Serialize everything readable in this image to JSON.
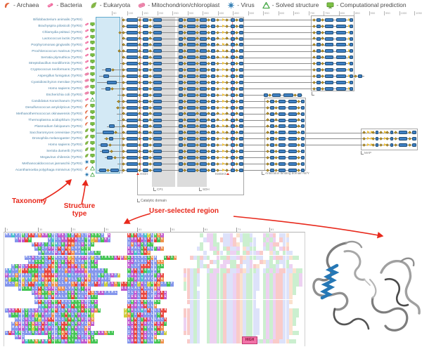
{
  "legend": {
    "items": [
      {
        "icon": "archaea-icon",
        "label": "- Archaea"
      },
      {
        "icon": "bacteria-icon",
        "label": "- Bacteria"
      },
      {
        "icon": "eukaryota-icon",
        "label": "- Eukaryota"
      },
      {
        "icon": "mitochondrion-icon",
        "label": "- Mitochondrion/chloroplast"
      },
      {
        "icon": "virus-icon",
        "label": "- Virus"
      },
      {
        "icon": "solved-structure-icon",
        "label": "- Solved structure"
      },
      {
        "icon": "computational-prediction-icon",
        "label": "- Computational prediction"
      }
    ]
  },
  "panel": {
    "ruler": {
      "start": 50,
      "end": 1050,
      "step": 50
    },
    "domain_labels": {
      "high": "HIGH",
      "kmsks": "KMSKS",
      "cp1": "CP1",
      "sdh": "SDH",
      "catalytic": "Catalytic domain",
      "anticodon": "Anticodon binding domain W/Y",
      "map": "MAP"
    },
    "glyph_patterns": {
      "cat": "d176 b180-196 d199 b203-211 d214 b218-230 b254-260 d263 b266-278 d281 b284-294 d297 b300-306 d310 a316 d323 b328-334 d337 b340-346",
      "ant1": "d447 b450-456 d459 b462-474 b478-492 a495 b497-502",
      "ant0": "b375-381 d384 b387-399 b403-417 d420 b423-429",
      "ant2": "d381 b384-390 d393 b396-406 b410-422 d425 b428-433",
      "mapc": "d518 a522 a527 d531 b534-538 d542 a546 d551 b555-559 d563 b567-579 d583 b586-592"
    },
    "rows": [
      {
        "name": "Bifidobacterium animalis (TyrRS)",
        "taxonomy": "bacteria",
        "structure": "prediction",
        "line": [
          173,
          502
        ],
        "g": "cat ant1"
      },
      {
        "name": "Brachyspira pilosicoli (TyrRS)",
        "taxonomy": "bacteria",
        "structure": "prediction",
        "line": [
          173,
          502
        ],
        "g": "cat ant1"
      },
      {
        "name": "Chlamydia psittaci (TyrRS)",
        "taxonomy": "bacteria",
        "structure": "prediction",
        "line": [
          170,
          502
        ],
        "g": "d171 cat ant1"
      },
      {
        "name": "Lactococcus lactis (TyrRS)",
        "taxonomy": "bacteria",
        "structure": "prediction",
        "line": [
          173,
          502
        ],
        "g": "cat ant1"
      },
      {
        "name": "Porphyromonas gingivalis (TyrRS)",
        "taxonomy": "bacteria",
        "structure": "prediction",
        "line": [
          173,
          502
        ],
        "g": "cat ant1"
      },
      {
        "name": "Prochlorococcus marinus (TyrRS)",
        "taxonomy": "bacteria",
        "structure": "prediction",
        "line": [
          168,
          502
        ],
        "g": "d170 cat ant1"
      },
      {
        "name": "Serratia plymuthica (TyrRS)",
        "taxonomy": "bacteria",
        "structure": "prediction",
        "line": [
          173,
          502
        ],
        "g": "cat ant1"
      },
      {
        "name": "Streptobacillus moniliformis (TyrRS)",
        "taxonomy": "bacteria",
        "structure": "prediction",
        "line": [
          171,
          502
        ],
        "g": "cat ant1"
      },
      {
        "name": "Cryptococcus neoformans (TyrRS)",
        "taxonomy": "mitochondrion",
        "structure": "prediction",
        "line": [
          145,
          502
        ],
        "g": "b150-158 d161 cat ant1"
      },
      {
        "name": "Aspergillus fumigatus (TyrRS)",
        "taxonomy": "mitochondrion",
        "structure": "prediction",
        "line": [
          141,
          518
        ],
        "g": "b147-155 cat ant1 d506 b509-515"
      },
      {
        "name": "Cyanidioschyzon merolae (TyrRS)",
        "taxonomy": "mitochondrion",
        "structure": "prediction",
        "line": [
          138,
          502
        ],
        "g": "b152-166 cat ant1"
      },
      {
        "name": "Homo sapiens (TyrRS)",
        "taxonomy": "mitochondrion",
        "structure": "prediction",
        "line": [
          144,
          502
        ],
        "g": "b150-157 d160 cat ant1"
      },
      {
        "name": "Escherichia coli (TyrRS)",
        "taxonomy": "bacteria",
        "structure": "solved",
        "line": [
          167,
          430
        ],
        "g": "cat ant0"
      },
      {
        "name": "Candidatus Korarchaeum (TyrRS)",
        "taxonomy": "archaea",
        "structure": "prediction",
        "line": [
          166,
          433
        ],
        "g": "d169 cat ant2"
      },
      {
        "name": "Desulfurococcus amylolyticus (TyrRS)",
        "taxonomy": "archaea",
        "structure": "prediction",
        "line": [
          165,
          433
        ],
        "g": "d168 cat ant2"
      },
      {
        "name": "Methanothermococcus okinawensis (TyrRS)",
        "taxonomy": "archaea",
        "structure": "prediction",
        "line": [
          166,
          433
        ],
        "g": "cat ant2"
      },
      {
        "name": "Thermoplasma acidophilum (TyrRS)",
        "taxonomy": "archaea",
        "structure": "prediction",
        "line": [
          167,
          433
        ],
        "g": "cat ant2"
      },
      {
        "name": "Plasmodium falciparum (TyrRS)",
        "taxonomy": "eukaryota",
        "structure": "prediction",
        "line": [
          152,
          433
        ],
        "g": "b155-163 cat ant2"
      },
      {
        "name": "Saccharomyces cerevisiae (TyrRS)",
        "taxonomy": "eukaryota",
        "structure": "prediction",
        "line": [
          137,
          592
        ],
        "g": "b146-162 d165 cat ant2 mapc"
      },
      {
        "name": "Drosophila melanogaster (TyrRS)",
        "taxonomy": "eukaryota",
        "structure": "prediction",
        "line": [
          148,
          592
        ],
        "g": "d152 b155-161 cat ant2 mapc"
      },
      {
        "name": "Homo sapiens (TyrRS)",
        "taxonomy": "eukaryota",
        "structure": "prediction",
        "line": [
          140,
          592
        ],
        "g": "b143-153 d157 cat ant2 mapc"
      },
      {
        "name": "Seriola dumerili (TyrRS)",
        "taxonomy": "eukaryota",
        "structure": "prediction",
        "line": [
          142,
          433
        ],
        "g": "b145-155 d159 cat ant2"
      },
      {
        "name": "Megavirus chilensis (TyrRS)",
        "taxonomy": "virus",
        "structure": "prediction",
        "line": [
          149,
          433
        ],
        "g": "b152-160 d164 cat ant2"
      },
      {
        "name": "Methanocaldococcus jannaschii (TyrRS)",
        "taxonomy": "archaea",
        "structure": "solved",
        "line": [
          167,
          433
        ],
        "g": "cat ant2"
      },
      {
        "name": "Acanthamoeba polyphaga mimivirus (TyrRS)",
        "taxonomy": "virus",
        "structure": "solved",
        "line": [
          139,
          433
        ],
        "g": "b141-151 d154 b157-169 cat ant2"
      }
    ]
  },
  "annotations": {
    "taxonomy": "Taxonomy",
    "structure_line1": "Structure",
    "structure_line2": "type",
    "user_selected": "User-selected region"
  },
  "alignment": {
    "tick_labels": [
      1,
      11,
      21,
      31,
      41,
      51,
      61,
      71,
      81
    ],
    "motif_label": "HIGH",
    "rows": [
      "MAHVIQLRKAGEDSVLDELTWRGLIESQSF-E-----KQKLAHPLNGE-----------S-EDN--LIE-GASTV---DQER-AIG----",
      "---MEEKQ-----VYILEERRELITAPGASEF-----LEEKELKAKSG------------AEDN-RLIEK-ASTQL--NDQE-KAI----",
      "--------MRDFTIQHLQDRGILENVS----------IGLDSVST--------------T--DNQ-LIEKG-STVL--DQERK-IG----",
      "---------MSIFDELKARGLVFQTT-----------EAALSKALTEG----------LS--EDN-QRLIE-GAST--LNDQ-ERK----",
      "----------MNFVCELRARGMIHQMFQT--------EEHLNKG----------------A--TKL-SEDN-QRLIEK--GAS-TVL----",
      "------MLELFSLRQWLAEPGVADEFPLATNNSEKDGSELLWLSGA--SRSG----KATKLS--DNQRLIEKGASTVL--QERKAIGTS",
      "-------MASSNLIKQLQEKGLVAQVTD---------EEALALKLAGG----------TA--KLS-EDNQ-RLIE--KGAS-TVLN----",
      "--MSELERRKEVLRGSEALKDRLGQLNS---------ELLFKKKLLNS----------QATK--SED-NQRL-IEKG--ASTV-LND----",
      "AHLFPRKSSTLARKATVLGELDEEGAVAAIT------SDKLKQHVAS-------RKATK--LSEDNQRLIEKGASTV-LNDQERKAIGTS",
      "DWAGFAALTKAGKRKEFVCHLFFMDPLIHQVVEFP--MDELHMVFTEK------EKATL--SEDNQRLIEKGASTVL-NDQERKAIGTSE",
      "APTSAPVYPGVDGKPNVIGVLLSARGLIDAVI-----STDVYAVCARG------GKATL--SEDNQRLIEKGASTVL-NDQERKAIGTSE",
      "VLLPLGLRKAHSGAGGLLAAGKARGLFKDFPFEGTKRTELPELPQRGIASF---SKATL--SEDNQRLIEKGASTVL-NDQERKAIGTSE",
      "----ASSNLIKQLDELGGLVAQVTDE---------EEALALRLAAGE-------TKAT---SEDNQRLIEKGASTVL-NDQERKAIGT--",
      "--------VDGNTGSELLVQENLALKGLDEFVML---ILELRKFLFDKE------KATL--SEDNQRLIEKGASTV--NDQERKAIGT--",
      "---------MDAQLKVALATRNVLEVTT---------IEELRKLFEDKE------KATL--SEDNQRLIEKGASTV--NDQERKAIG---",
      "---------MRNVENTKAILNTSEVISE---------VQELKNVMNS--------KATL--SEDNQRLIEKGASTV--NDQERKAIG---",
      "----------MHQELEAKLYKNTREVVT---------REDAERLLG----------ATL--SEDNQRLIEKGASTV--NDQERKAI----",
      "LEEKKAQLLEALDVQKILNDLLSRSSEGQ-------PQELLHMKLLLKR-----KKATL--SEDNQRLIEKGASTVL-NDQERKAIGTS-",
      "-MSSAATVDPNEAFGLITRNLQEVLNP---------PGTIKDVLLVQK------KKATL--SEDNQRLIEKGASTVL-NDQERKAIGTS-",
      "---MVCELITPAEKKALITRNLQEIEG----------DQKITKELLACK-----EKATL--SEDNQRLIEKGASTVL-NDQERKAIGT--",
      "--MGDAESGELKEHLTLKRNLQEVLGE----------EEKIKEVLKERT-----EKATL--SEDNQRLIEKGASTVL-NDQERKAIGT--",
      "--MADDLSPQEKFDLITRNLQEVLGE-----------LEKLKQVLQRG------EKATL--SEDNQRLIEKGASTVL-NDQERKAIG---",
      "LREYQLIVQLDYDNFIQGRVQNLLESISEEGQT----IDRLKELVESFP-----KKATL--SEDNQRLIEKGASTVL-NDQERKAIGTS-",
      "---MDI-------TEMIKRNTSEFIES----------EEKLREVLG----------ATL--SEDNQRLIEKGASTV--NDQERKAI----",
      "-----DHTNGNEHRSTQLESTALEEGTS---------LDRLKQLVQSG-------KATL--SEDNQRLIEKGASTVLNDQERKAIGTS--"
    ]
  },
  "colors": {
    "domain_fill": "#3f7fc1",
    "domain_border": "#1d4e79",
    "diamond": "#f0c23c",
    "selection_fill": "#d3e9f5",
    "selection_border": "#62aacd",
    "annotation_red": "#e8291c",
    "motif_line": "#ef8a96",
    "gray_band": "#dcdcdc",
    "residue": {
      "hydrophobic": "#8496ec",
      "positive": "#e9443d",
      "negative": "#bf59cf",
      "polar": "#44c554",
      "glycine": "#f0924d",
      "proline": "#cfcf3f",
      "aromatic": "#44c0c8",
      "other": "#9aa8b2"
    }
  }
}
